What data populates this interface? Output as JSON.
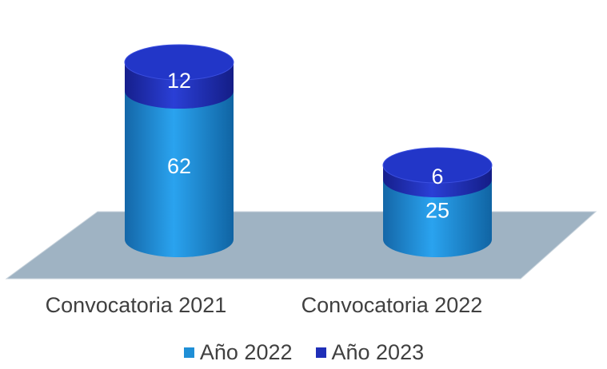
{
  "chart_data": {
    "type": "bar",
    "style": "3d-stacked-cylinder",
    "categories": [
      "Convocatoria 2021",
      "Convocatoria 2022"
    ],
    "series": [
      {
        "name": "Año 2022",
        "values": [
          62,
          25
        ],
        "color": "#1f8fd6"
      },
      {
        "name": "Año 2023",
        "values": [
          12,
          6
        ],
        "color": "#1f2fb8"
      }
    ],
    "floor_color": "#9fb3c3",
    "label_color": "#ffffff",
    "text_color": "#404040",
    "legend_position": "bottom",
    "grid": false
  }
}
